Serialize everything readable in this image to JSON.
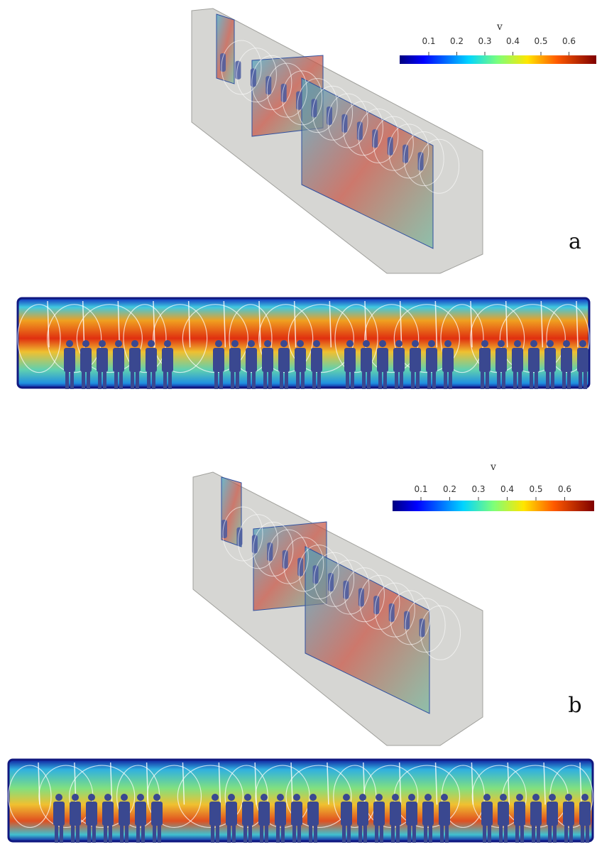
{
  "panels": [
    {
      "label": "a",
      "colorbar": {
        "title": "v",
        "ticks": [
          0.1,
          0.2,
          0.3,
          0.4,
          0.5,
          0.6
        ]
      }
    },
    {
      "label": "b",
      "colorbar": {
        "title": "v",
        "ticks": [
          0.1,
          0.2,
          0.3,
          0.4,
          0.5,
          0.6
        ]
      }
    }
  ]
}
